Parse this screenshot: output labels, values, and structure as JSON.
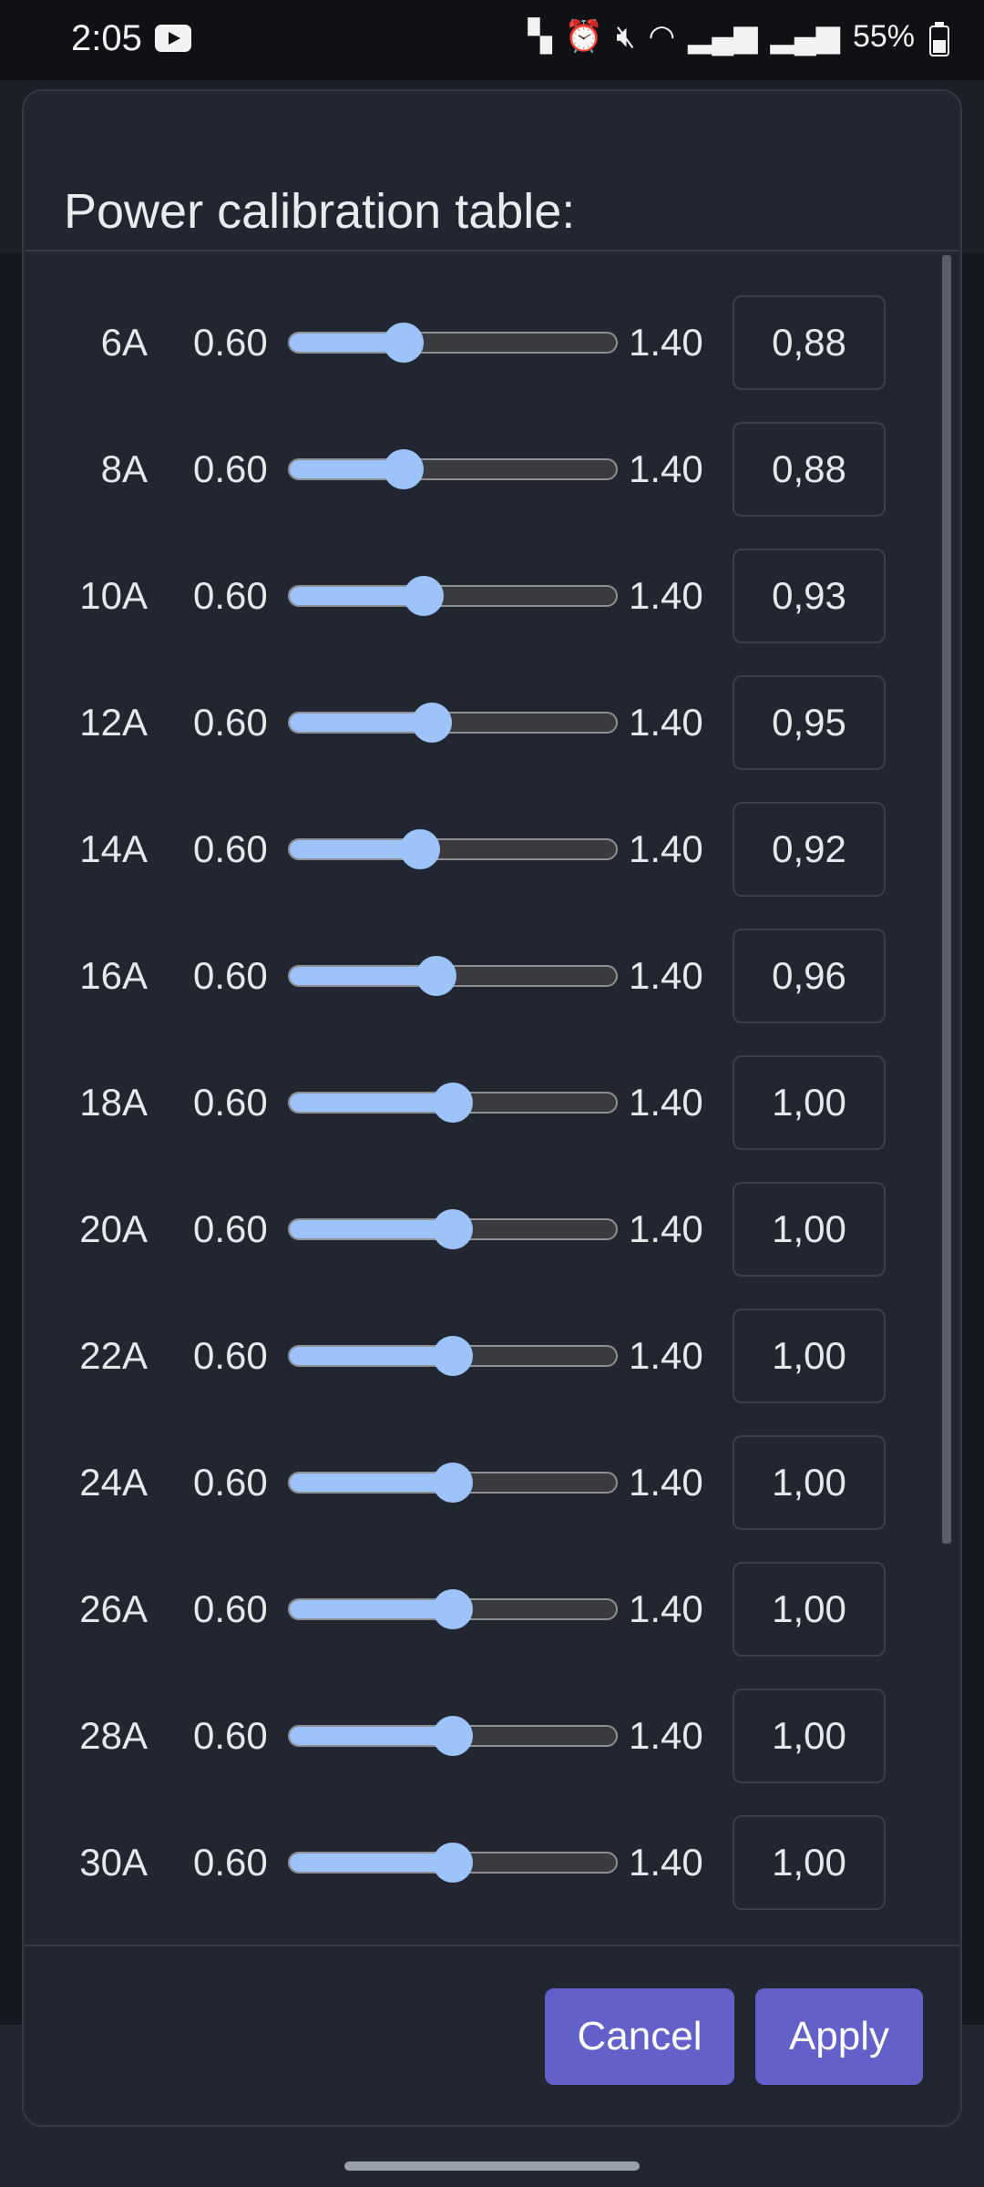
{
  "status_bar": {
    "time": "2:05",
    "battery": "55%",
    "icons": [
      "youtube-icon",
      "work-profile-icon",
      "alarm-icon",
      "mute-icon",
      "wifi-icon",
      "signal-icon",
      "signal-icon",
      "battery-icon"
    ]
  },
  "dialog": {
    "title": "Power calibration table:",
    "rows": [
      {
        "label": "6A",
        "min": "0.60",
        "max": "1.40",
        "value": "0,88",
        "level": 0.88
      },
      {
        "label": "8A",
        "min": "0.60",
        "max": "1.40",
        "value": "0,88",
        "level": 0.88
      },
      {
        "label": "10A",
        "min": "0.60",
        "max": "1.40",
        "value": "0,93",
        "level": 0.93
      },
      {
        "label": "12A",
        "min": "0.60",
        "max": "1.40",
        "value": "0,95",
        "level": 0.95
      },
      {
        "label": "14A",
        "min": "0.60",
        "max": "1.40",
        "value": "0,92",
        "level": 0.92
      },
      {
        "label": "16A",
        "min": "0.60",
        "max": "1.40",
        "value": "0,96",
        "level": 0.96
      },
      {
        "label": "18A",
        "min": "0.60",
        "max": "1.40",
        "value": "1,00",
        "level": 1.0
      },
      {
        "label": "20A",
        "min": "0.60",
        "max": "1.40",
        "value": "1,00",
        "level": 1.0
      },
      {
        "label": "22A",
        "min": "0.60",
        "max": "1.40",
        "value": "1,00",
        "level": 1.0
      },
      {
        "label": "24A",
        "min": "0.60",
        "max": "1.40",
        "value": "1,00",
        "level": 1.0
      },
      {
        "label": "26A",
        "min": "0.60",
        "max": "1.40",
        "value": "1,00",
        "level": 1.0
      },
      {
        "label": "28A",
        "min": "0.60",
        "max": "1.40",
        "value": "1,00",
        "level": 1.0
      },
      {
        "label": "30A",
        "min": "0.60",
        "max": "1.40",
        "value": "1,00",
        "level": 1.0
      }
    ],
    "cancel_label": "Cancel",
    "apply_label": "Apply"
  },
  "colors": {
    "accent_button": "#6361c9",
    "slider_fill": "#9cc4fb",
    "dialog_bg": "#222631"
  }
}
